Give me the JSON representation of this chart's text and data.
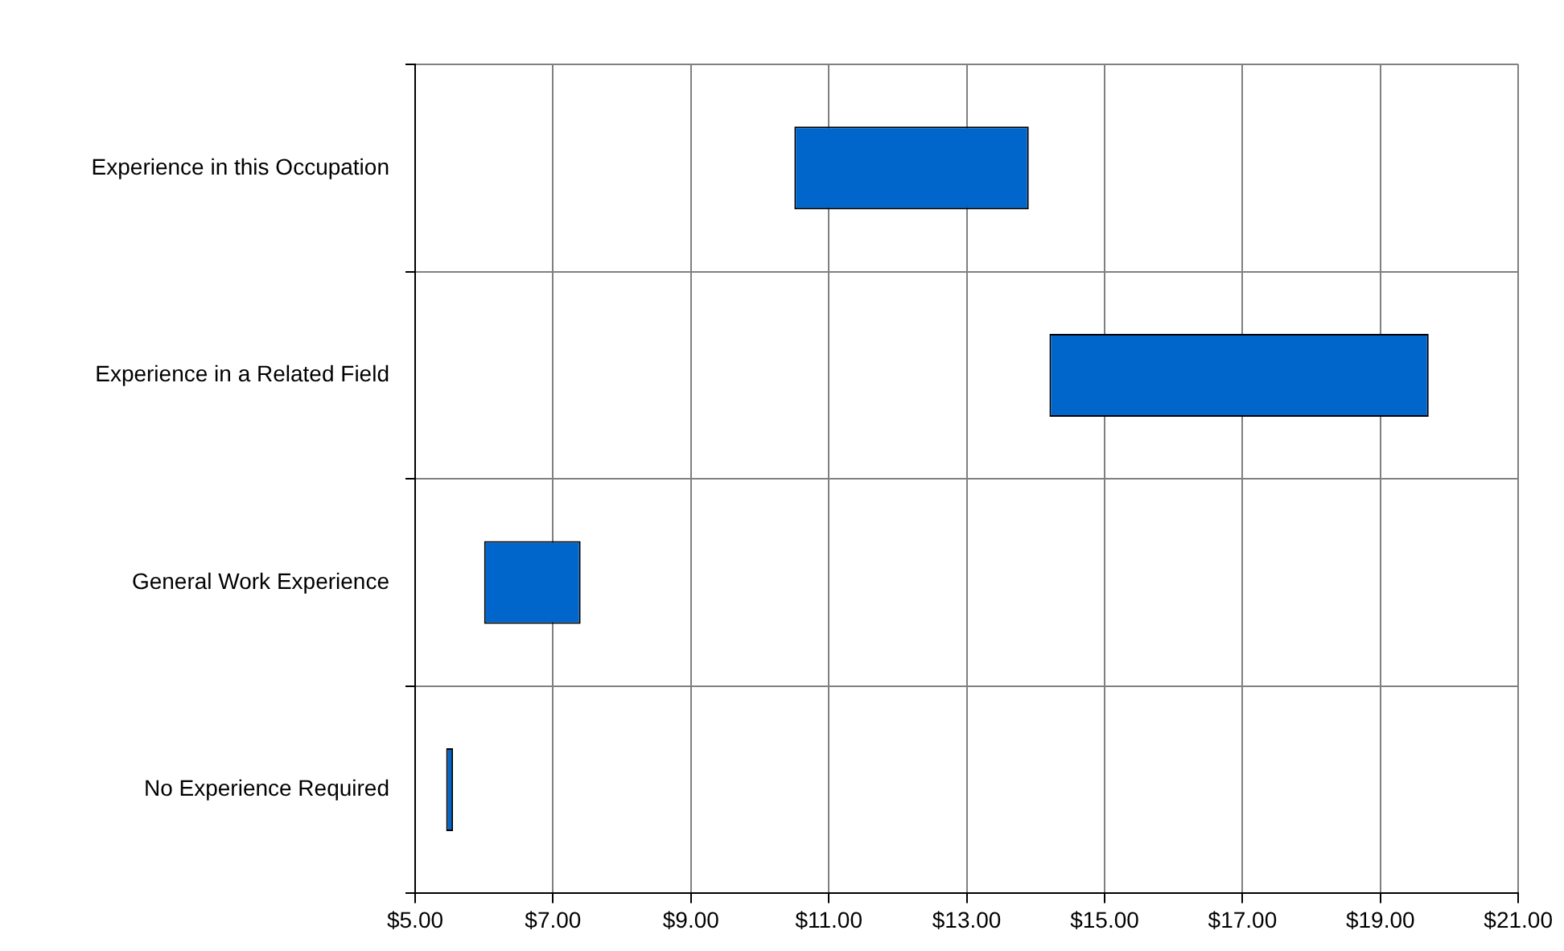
{
  "chart_data": {
    "type": "bar",
    "orientation": "horizontal",
    "categories": [
      "Experience in this Occupation",
      "Experience in a Related Field",
      "General Work Experience",
      "No Experience Required"
    ],
    "base": [
      10.5,
      14.2,
      6.0,
      5.45
    ],
    "values": [
      3.4,
      5.5,
      1.4,
      0.1
    ],
    "color": "#0066cc",
    "xlim": [
      5,
      21
    ],
    "xticks": [
      {
        "value": 5,
        "label": "$5.00"
      },
      {
        "value": 7,
        "label": "$7.00"
      },
      {
        "value": 9,
        "label": "$9.00"
      },
      {
        "value": 11,
        "label": "$11.00"
      },
      {
        "value": 13,
        "label": "$13.00"
      },
      {
        "value": 15,
        "label": "$15.00"
      },
      {
        "value": 17,
        "label": "$17.00"
      },
      {
        "value": 19,
        "label": "$19.00"
      },
      {
        "value": 21,
        "label": "$21.00"
      }
    ],
    "grid": true,
    "legend": false
  }
}
